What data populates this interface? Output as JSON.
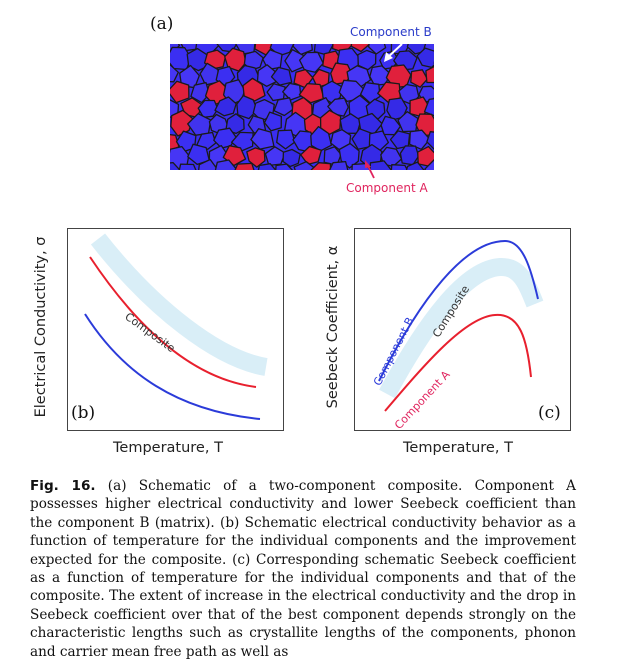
{
  "panel_a": {
    "label": "(a)",
    "component_b_label": "Component B",
    "component_a_label": "Component A",
    "colors": {
      "matrix": "#3a2df0",
      "inclusion": "#e0203c",
      "edge": "#1a1a1a"
    }
  },
  "panel_b": {
    "label": "(b)",
    "y_axis_title": "Electrical Conductivity, σ",
    "x_axis_title": "Temperature, T",
    "curve_label": "Composite",
    "colors": {
      "component_a": "#e8202e",
      "component_b": "#2b3bd9",
      "composite": "#d9eef7"
    }
  },
  "panel_c": {
    "label": "(c)",
    "y_axis_title": "Seebeck Coefficient, α",
    "x_axis_title": "Temperature, T",
    "curve_label_b": "Component B",
    "curve_label_composite": "Composite",
    "curve_label_a": "Component A"
  },
  "caption": {
    "fig_label": "Fig. 16.",
    "text": " (a) Schematic of a two-component composite. Component A possesses higher electrical conductivity and lower Seebeck coefficient than the component B (matrix). (b) Schematic electrical conductivity behavior as a function of temperature for the individual components and the improvement expected for the composite. (c) Corresponding schematic Seebeck coefficient as a function of temperature for the individual components and that of the composite. The extent of increase in the electrical conductivity and the drop in Seebeck coefficient over that of the best component depends strongly on the characteristic lengths such as crystallite lengths of the components, phonon and carrier mean free path as well as"
  }
}
